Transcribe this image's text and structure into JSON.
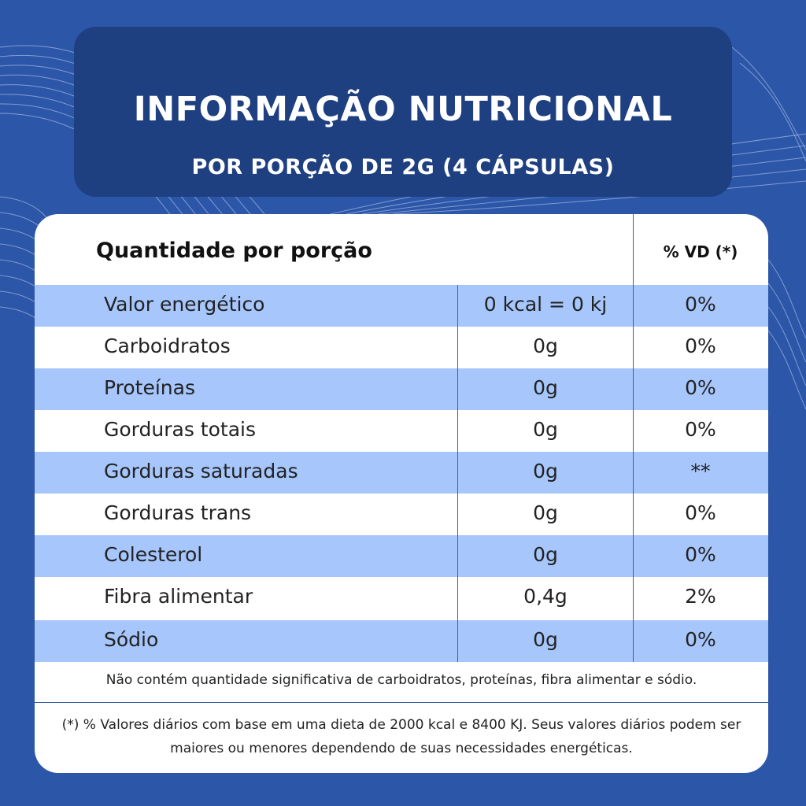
{
  "header": {
    "title": "INFORMAÇÃO NUTRICIONAL",
    "subtitle": "POR PORÇÃO DE 2G (4 CÁPSULAS)"
  },
  "table": {
    "quantity_header": "Quantidade por porção",
    "vd_header": "% VD (*)",
    "rows": [
      {
        "name": "Valor energético",
        "amount": "0 kcal = 0 kj",
        "pct": "0%"
      },
      {
        "name": "Carboidratos",
        "amount": "0g",
        "pct": "0%"
      },
      {
        "name": "Proteínas",
        "amount": "0g",
        "pct": "0%"
      },
      {
        "name": "Gorduras totais",
        "amount": "0g",
        "pct": "0%"
      },
      {
        "name": "Gorduras saturadas",
        "amount": "0g",
        "pct": "**"
      },
      {
        "name": "Gorduras trans",
        "amount": "0g",
        "pct": "0%"
      },
      {
        "name": "Colesterol",
        "amount": "0g",
        "pct": "0%"
      },
      {
        "name": "Fibra alimentar",
        "amount": "0,4g",
        "pct": "2%"
      },
      {
        "name": "Sódio",
        "amount": "0g",
        "pct": "0%"
      }
    ]
  },
  "notes": {
    "not_significant": "Não contém quantidade significativa de carboidratos, proteínas, fibra alimentar e sódio.",
    "daily_values": "(*) % Valores diários com base em uma dieta de 2000 kcal e 8400 KJ. Seus valores diários podem ser maiores ou menores dependendo de suas necessidades energéticas."
  },
  "colors": {
    "background": "#2c56a8",
    "header_panel": "#1e3f80",
    "row_shade": "#a6c6fc",
    "divider": "#3b5fa5"
  }
}
